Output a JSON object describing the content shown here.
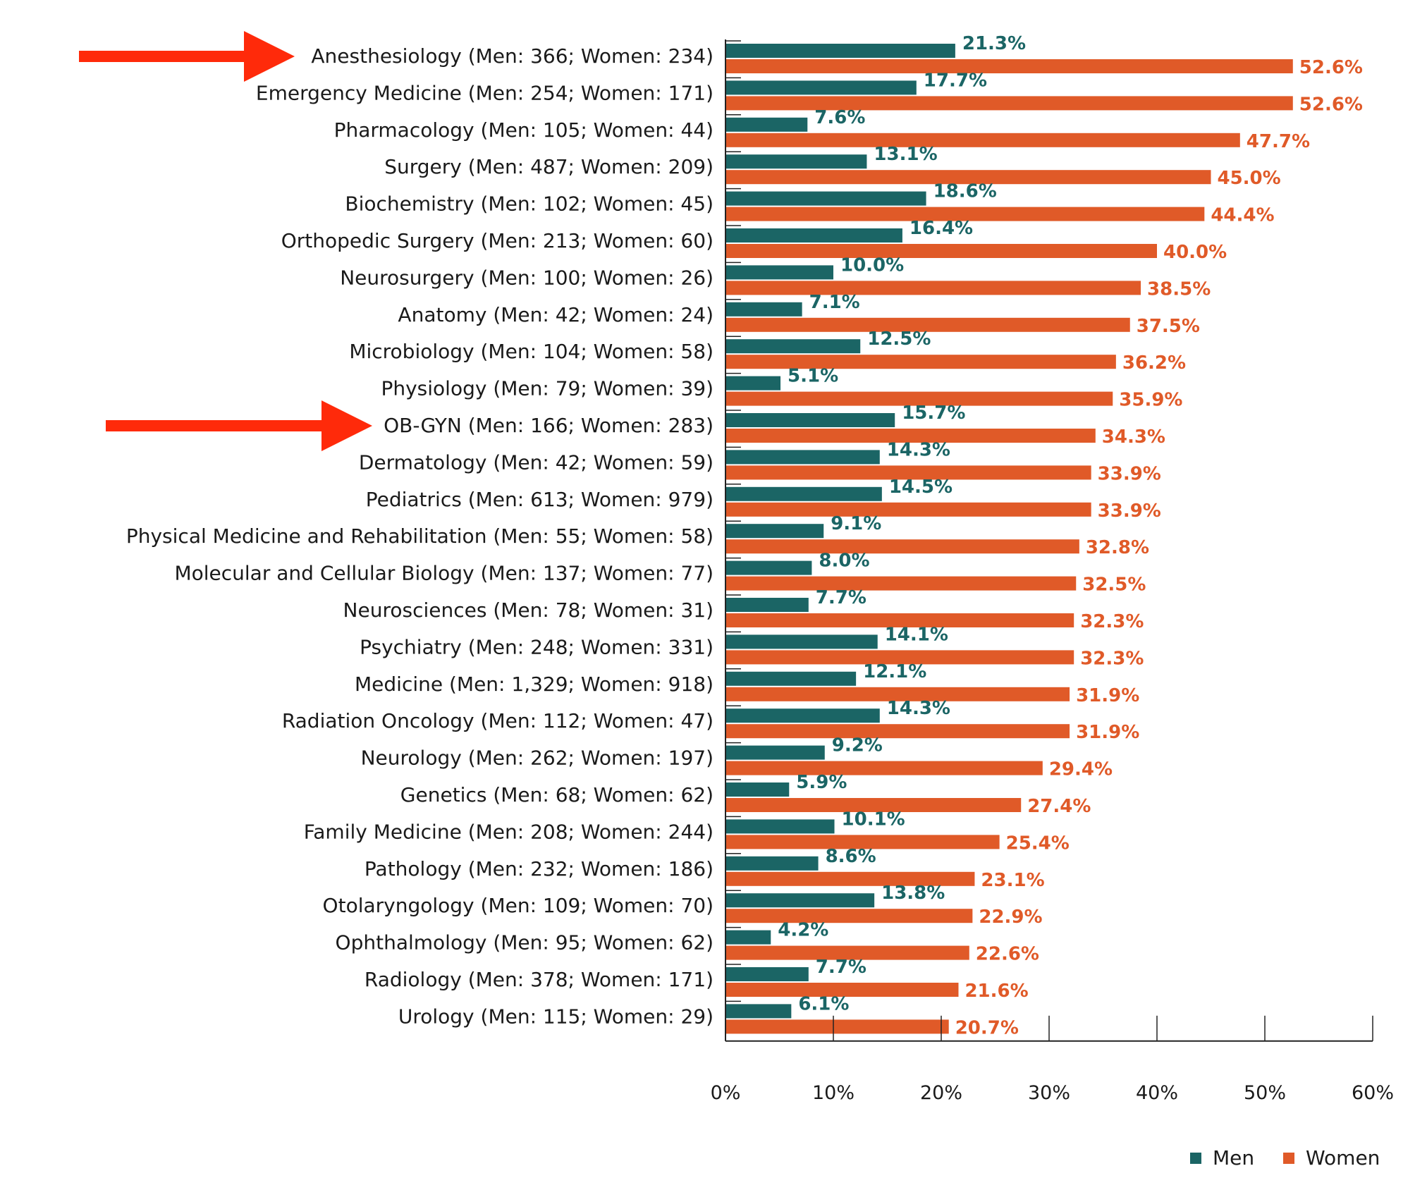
{
  "chart_data": {
    "type": "bar",
    "orientation": "horizontal",
    "categories": [
      "Anesthesiology (Men: 366; Women: 234)",
      "Emergency Medicine (Men: 254; Women: 171)",
      "Pharmacology (Men: 105; Women: 44)",
      "Surgery (Men: 487; Women: 209)",
      "Biochemistry (Men: 102; Women: 45)",
      "Orthopedic Surgery (Men: 213; Women: 60)",
      "Neurosurgery (Men: 100; Women: 26)",
      "Anatomy (Men: 42; Women: 24)",
      "Microbiology (Men: 104; Women: 58)",
      "Physiology (Men: 79; Women: 39)",
      "OB-GYN (Men: 166; Women: 283)",
      "Dermatology (Men: 42; Women: 59)",
      "Pediatrics (Men: 613; Women: 979)",
      "Physical Medicine and Rehabilitation (Men: 55; Women: 58)",
      "Molecular and Cellular Biology (Men: 137; Women: 77)",
      "Neurosciences (Men: 78; Women: 31)",
      "Psychiatry (Men: 248; Women: 331)",
      "Medicine (Men: 1,329; Women: 918)",
      "Radiation Oncology (Men: 112; Women: 47)",
      "Neurology (Men: 262; Women: 197)",
      "Genetics (Men: 68; Women: 62)",
      "Family Medicine (Men: 208; Women: 244)",
      "Pathology (Men: 232; Women: 186)",
      "Otolaryngology (Men: 109; Women: 70)",
      "Ophthalmology (Men: 95; Women: 62)",
      "Radiology (Men: 378; Women: 171)",
      "Urology (Men: 115; Women: 29)"
    ],
    "series": [
      {
        "name": "Men",
        "color": "#1b6565",
        "values": [
          21.3,
          17.7,
          7.6,
          13.1,
          18.6,
          16.4,
          10.0,
          7.1,
          12.5,
          5.1,
          15.7,
          14.3,
          14.5,
          9.1,
          8.0,
          7.7,
          14.1,
          12.1,
          14.3,
          9.2,
          5.9,
          10.1,
          8.6,
          13.8,
          4.2,
          7.7,
          6.1
        ],
        "labels": [
          "21.3%",
          "17.7%",
          "7.6%",
          "13.1%",
          "18.6%",
          "16.4%",
          "10.0%",
          "7.1%",
          "12.5%",
          "5.1%",
          "15.7%",
          "14.3%",
          "14.5%",
          "9.1%",
          "8.0%",
          "7.7%",
          "14.1%",
          "12.1%",
          "14.3%",
          "9.2%",
          "5.9%",
          "10.1%",
          "8.6%",
          "13.8%",
          "4.2%",
          "7.7%",
          "6.1%"
        ]
      },
      {
        "name": "Women",
        "color": "#e05a28",
        "values": [
          52.6,
          52.6,
          47.7,
          45.0,
          44.4,
          40.0,
          38.5,
          37.5,
          36.2,
          35.9,
          34.3,
          33.9,
          33.9,
          32.8,
          32.5,
          32.3,
          32.3,
          31.9,
          31.9,
          29.4,
          27.4,
          25.4,
          23.1,
          22.9,
          22.6,
          21.6,
          20.7
        ],
        "labels": [
          "52.6%",
          "52.6%",
          "47.7%",
          "45.0%",
          "44.4%",
          "40.0%",
          "38.5%",
          "37.5%",
          "36.2%",
          "35.9%",
          "34.3%",
          "33.9%",
          "33.9%",
          "32.8%",
          "32.5%",
          "32.3%",
          "32.3%",
          "31.9%",
          "31.9%",
          "29.4%",
          "27.4%",
          "25.4%",
          "23.1%",
          "22.9%",
          "22.6%",
          "21.6%",
          "20.7%"
        ]
      }
    ],
    "xlim": [
      0,
      60
    ],
    "xticks": [
      0,
      10,
      20,
      30,
      40,
      50,
      60
    ],
    "xtick_labels": [
      "0%",
      "10%",
      "20%",
      "30%",
      "40%",
      "50%",
      "60%"
    ],
    "highlighted_categories": [
      "Anesthesiology (Men: 366; Women: 234)",
      "OB-GYN (Men: 166; Women: 283)"
    ],
    "highlight_color": "#ff2a0a",
    "legend": {
      "position": "bottom-right",
      "items": [
        "Men",
        "Women"
      ]
    },
    "grid": false
  }
}
